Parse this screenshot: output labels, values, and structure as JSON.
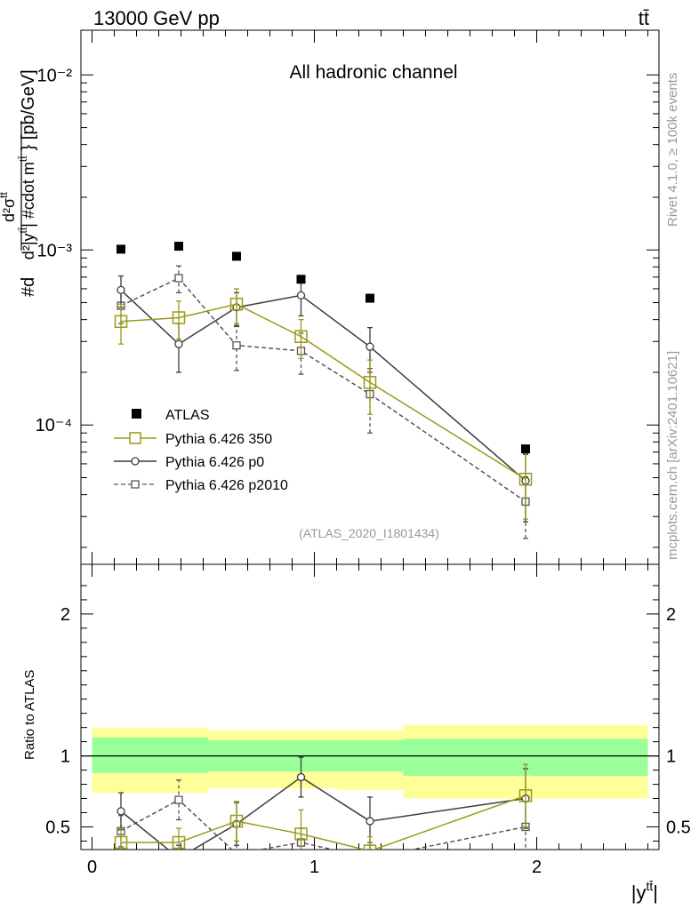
{
  "header": {
    "energy_label": "13000 GeV pp",
    "process_label": "tt̄"
  },
  "side_labels": {
    "rivet": "Rivet 4.1.0, ≥ 100k events",
    "source": "mcplots.cern.ch [arXiv:2401.10621]"
  },
  "colors": {
    "atlas": "#000000",
    "p350": "#9a9a19",
    "p0": "#3c3c3c",
    "p2010": "#555555",
    "band_inner": "#99ff99",
    "band_outer": "#ffff99"
  },
  "chart_data": [
    {
      "type": "scatter",
      "title": "All hadronic channel",
      "ylabel": "#d d²σ^{tt̄} / d²|y^{tt̄}| #cdot m^{tt̄} [pb/GeV]",
      "yscale": "log",
      "ylim": [
        1.6e-05,
        0.018
      ],
      "xlim": [
        -0.05,
        2.55
      ],
      "analysis_label": "(ATLAS_2020_I1801434)",
      "y_ticks": [
        {
          "value": 0.01,
          "label": "10⁻²"
        },
        {
          "value": 0.001,
          "label": "10⁻³"
        },
        {
          "value": 0.0001,
          "label": "10⁻⁴"
        }
      ],
      "legend_position": "lower-left",
      "series": [
        {
          "name": "ATLAS",
          "key": "atlas",
          "marker": "filled-square",
          "x": [
            0.13,
            0.39,
            0.65,
            0.94,
            1.25,
            1.95
          ],
          "y": [
            0.00101,
            0.00105,
            0.00092,
            0.00068,
            0.00053,
            7.3e-05
          ]
        },
        {
          "name": "Pythia 6.426 350",
          "key": "p350",
          "marker": "open-square",
          "x": [
            0.13,
            0.39,
            0.65,
            0.94,
            1.25,
            1.95
          ],
          "y": [
            0.00039,
            0.00041,
            0.00049,
            0.00032,
            0.000175,
            4.9e-05
          ],
          "err_lo": [
            0.0001,
            0.0001,
            0.00011,
            8e-05,
            6e-05,
            2e-05
          ],
          "err_hi": [
            0.0001,
            0.0001,
            0.00011,
            8e-05,
            6e-05,
            2e-05
          ]
        },
        {
          "name": "Pythia 6.426 p0",
          "key": "p0",
          "marker": "open-circle",
          "x": [
            0.13,
            0.39,
            0.65,
            0.94,
            1.25,
            1.95
          ],
          "y": [
            0.00059,
            0.00029,
            0.00047,
            0.00055,
            0.00028,
            4.8e-05
          ],
          "err_lo": [
            0.00012,
            9e-05,
            0.0001,
            0.00013,
            8e-05,
            2e-05
          ],
          "err_hi": [
            0.00012,
            9e-05,
            0.0001,
            0.00013,
            8e-05,
            2e-05
          ]
        },
        {
          "name": "Pythia 6.426 p2010",
          "key": "p2010",
          "marker": "open-square-small",
          "dashed": true,
          "x": [
            0.13,
            0.39,
            0.65,
            0.94,
            1.25,
            1.95
          ],
          "y": [
            0.00048,
            0.00069,
            0.000285,
            0.000265,
            0.00015,
            3.65e-05
          ],
          "err_lo": [
            0.0001,
            0.00012,
            8e-05,
            7e-05,
            6e-05,
            1.4e-05
          ],
          "err_hi": [
            0.0001,
            0.00012,
            8e-05,
            7e-05,
            6e-05,
            1.4e-05
          ]
        }
      ]
    },
    {
      "type": "scatter",
      "ylabel": "Ratio to ATLAS",
      "xlabel": "|y^{tt̄}|",
      "ylim": [
        0.34,
        2.35
      ],
      "xlim": [
        -0.05,
        2.55
      ],
      "x_ticks": [
        0,
        1,
        2
      ],
      "y_ticks": [
        0.5,
        1,
        2
      ],
      "reference_line": 1,
      "bands": [
        {
          "x0": 0.0,
          "x1": 0.52,
          "inner": [
            0.88,
            1.13
          ],
          "outer": [
            0.74,
            1.2
          ]
        },
        {
          "x0": 0.52,
          "x1": 1.1,
          "inner": [
            0.89,
            1.11
          ],
          "outer": [
            0.77,
            1.18
          ]
        },
        {
          "x0": 1.1,
          "x1": 1.4,
          "inner": [
            0.89,
            1.11
          ],
          "outer": [
            0.76,
            1.18
          ]
        },
        {
          "x0": 1.4,
          "x1": 2.5,
          "inner": [
            0.86,
            1.12
          ],
          "outer": [
            0.7,
            1.22
          ]
        }
      ],
      "series": [
        {
          "name": "Pythia 6.426 350",
          "key": "p350",
          "x": [
            0.13,
            0.39,
            0.65,
            0.94,
            1.25,
            1.95
          ],
          "y": [
            0.39,
            0.39,
            0.54,
            0.45,
            0.33,
            0.72
          ],
          "err_lo": [
            0.1,
            0.1,
            0.14,
            0.17,
            0.1,
            0.22
          ],
          "err_hi": [
            0.1,
            0.1,
            0.14,
            0.17,
            0.1,
            0.22
          ]
        },
        {
          "name": "Pythia 6.426 p0",
          "key": "p0",
          "x": [
            0.13,
            0.39,
            0.65,
            0.94,
            1.25,
            1.95
          ],
          "y": [
            0.61,
            0.28,
            0.52,
            0.85,
            0.54,
            0.7
          ],
          "err_lo": [
            0.13,
            0.09,
            0.15,
            0.14,
            0.17,
            0.21
          ],
          "err_hi": [
            0.13,
            0.09,
            0.15,
            0.14,
            0.17,
            0.21
          ]
        },
        {
          "name": "Pythia 6.426 p2010",
          "key": "p2010",
          "dashed": true,
          "x": [
            0.13,
            0.39,
            0.65,
            0.94,
            1.25,
            1.95
          ],
          "y": [
            0.47,
            0.69,
            0.31,
            0.39,
            0.28,
            0.5
          ],
          "err_lo": [
            0.11,
            0.14,
            0.09,
            0.1,
            0.11,
            0.19
          ],
          "err_hi": [
            0.11,
            0.14,
            0.09,
            0.1,
            0.11,
            0.19
          ]
        }
      ]
    }
  ]
}
